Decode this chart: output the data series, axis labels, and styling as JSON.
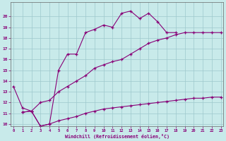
{
  "xlabel": "Windchill (Refroidissement éolien,°C)",
  "bg_color": "#c8eaea",
  "grid_color": "#9ec8cc",
  "line_color": "#880077",
  "xlim": [
    0,
    23
  ],
  "ylim": [
    10,
    21
  ],
  "xticks": [
    0,
    1,
    2,
    3,
    4,
    5,
    6,
    7,
    8,
    9,
    10,
    11,
    12,
    13,
    14,
    15,
    16,
    17,
    18,
    19,
    20,
    21,
    22,
    23
  ],
  "yticks": [
    10,
    11,
    12,
    13,
    14,
    15,
    16,
    17,
    18,
    19,
    20
  ],
  "curve1_x": [
    0,
    1,
    2,
    3,
    4,
    5,
    6,
    7,
    8,
    9,
    10,
    11,
    12,
    13,
    14,
    15,
    16,
    17,
    18
  ],
  "curve1_y": [
    13.5,
    11.5,
    11.2,
    9.8,
    10.0,
    15.0,
    16.5,
    16.5,
    18.5,
    18.8,
    19.2,
    19.0,
    20.3,
    20.5,
    19.8,
    20.3,
    19.5,
    18.5,
    18.5
  ],
  "curve2_x": [
    1,
    2,
    3,
    4,
    5,
    6,
    7,
    8,
    9,
    10,
    11,
    12,
    13,
    14,
    15,
    16,
    17,
    18,
    19,
    20,
    21,
    22,
    23
  ],
  "curve2_y": [
    11.1,
    11.2,
    12.0,
    12.2,
    13.0,
    13.5,
    14.0,
    14.5,
    15.2,
    15.5,
    15.8,
    16.0,
    16.5,
    17.0,
    17.5,
    17.8,
    18.0,
    18.3,
    18.5,
    18.5,
    18.5,
    18.5,
    18.5
  ],
  "curve3_x": [
    1,
    2,
    3,
    4,
    5,
    6,
    7,
    8,
    9,
    10,
    11,
    12,
    13,
    14,
    15,
    16,
    17,
    18,
    19,
    20,
    21,
    22,
    23
  ],
  "curve3_y": [
    11.1,
    11.2,
    9.8,
    10.0,
    10.3,
    10.5,
    10.7,
    11.0,
    11.2,
    11.4,
    11.5,
    11.6,
    11.7,
    11.8,
    11.9,
    12.0,
    12.1,
    12.2,
    12.3,
    12.4,
    12.4,
    12.5,
    12.5
  ]
}
